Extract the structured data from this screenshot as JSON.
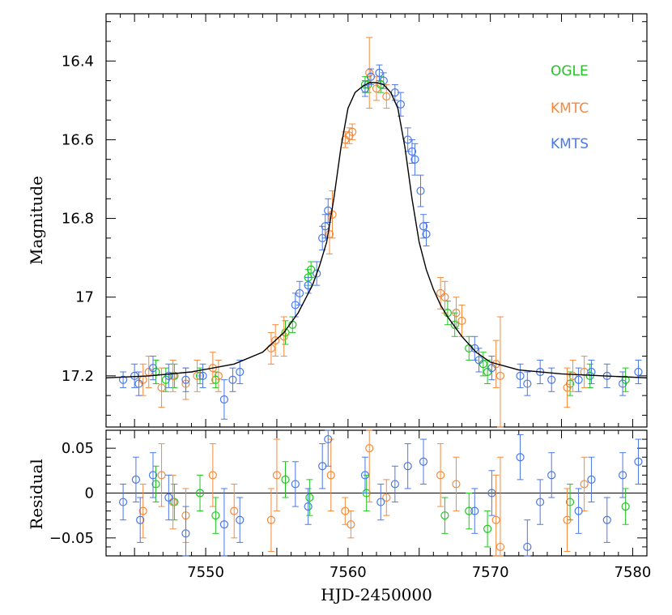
{
  "chart_data": [
    {
      "type": "scatter",
      "panel": "main",
      "xlabel": "",
      "ylabel": "Magnitude",
      "xlim": [
        7543,
        7581
      ],
      "ylim": [
        17.33,
        16.28
      ],
      "y_inverted": true,
      "y_ticks": [
        16.4,
        16.6,
        16.8,
        17,
        17.2
      ],
      "y_tick_labels": [
        "16.4",
        "16.6",
        "16.8",
        "17",
        "17.2"
      ],
      "legend_placement": "top-right",
      "grid": false,
      "model_curve": {
        "name": "",
        "color": "#000000",
        "x": [
          7543,
          7546,
          7549,
          7552,
          7554,
          7555.5,
          7556.5,
          7557.5,
          7558,
          7558.5,
          7559,
          7559.5,
          7560,
          7560.5,
          7561,
          7561.5,
          7562,
          7562.5,
          7563,
          7563.5,
          7564,
          7564.5,
          7565,
          7565.5,
          7566,
          7566.5,
          7567,
          7568,
          7569,
          7570,
          7572,
          7575,
          7578,
          7581
        ],
        "y": [
          17.205,
          17.2,
          17.19,
          17.17,
          17.14,
          17.09,
          17.04,
          16.97,
          16.92,
          16.86,
          16.75,
          16.62,
          16.52,
          16.48,
          16.465,
          16.455,
          16.455,
          16.46,
          16.48,
          16.52,
          16.62,
          16.75,
          16.86,
          16.93,
          16.98,
          17.02,
          17.05,
          17.1,
          17.14,
          17.165,
          17.185,
          17.195,
          17.2,
          17.205
        ]
      },
      "series": [
        {
          "name": "OGLE",
          "color": "#22c422",
          "points": [
            {
              "x": 7546.5,
              "y": 17.19,
              "err": 0.03
            },
            {
              "x": 7547.2,
              "y": 17.21,
              "err": 0.03
            },
            {
              "x": 7547.8,
              "y": 17.2,
              "err": 0.03
            },
            {
              "x": 7549.6,
              "y": 17.2,
              "err": 0.02
            },
            {
              "x": 7550.7,
              "y": 17.21,
              "err": 0.02
            },
            {
              "x": 7555.6,
              "y": 17.09,
              "err": 0.03
            },
            {
              "x": 7556.1,
              "y": 17.07,
              "err": 0.02
            },
            {
              "x": 7557.2,
              "y": 16.95,
              "err": 0.02
            },
            {
              "x": 7557.4,
              "y": 16.93,
              "err": 0.02
            },
            {
              "x": 7561.2,
              "y": 16.46,
              "err": 0.02
            },
            {
              "x": 7561.4,
              "y": 16.46,
              "err": 0.02
            },
            {
              "x": 7562.3,
              "y": 16.46,
              "err": 0.02
            },
            {
              "x": 7567.0,
              "y": 17.04,
              "err": 0.03
            },
            {
              "x": 7567.5,
              "y": 17.07,
              "err": 0.03
            },
            {
              "x": 7568.5,
              "y": 17.13,
              "err": 0.03
            },
            {
              "x": 7569.5,
              "y": 17.17,
              "err": 0.03
            },
            {
              "x": 7569.8,
              "y": 17.19,
              "err": 0.03
            },
            {
              "x": 7575.6,
              "y": 17.22,
              "err": 0.03
            },
            {
              "x": 7577.0,
              "y": 17.2,
              "err": 0.03
            },
            {
              "x": 7579.5,
              "y": 17.21,
              "err": 0.03
            }
          ]
        },
        {
          "name": "KMTC",
          "color": "#f58a3c",
          "points": [
            {
              "x": 7545.6,
              "y": 17.21,
              "err": 0.04
            },
            {
              "x": 7546.0,
              "y": 17.19,
              "err": 0.04
            },
            {
              "x": 7546.9,
              "y": 17.23,
              "err": 0.05
            },
            {
              "x": 7547.7,
              "y": 17.2,
              "err": 0.04
            },
            {
              "x": 7548.6,
              "y": 17.22,
              "err": 0.04
            },
            {
              "x": 7549.4,
              "y": 17.2,
              "err": 0.04
            },
            {
              "x": 7550.5,
              "y": 17.18,
              "err": 0.04
            },
            {
              "x": 7550.9,
              "y": 17.2,
              "err": 0.04
            },
            {
              "x": 7554.6,
              "y": 17.13,
              "err": 0.04
            },
            {
              "x": 7554.9,
              "y": 17.11,
              "err": 0.04
            },
            {
              "x": 7555.5,
              "y": 17.1,
              "err": 0.05
            },
            {
              "x": 7558.7,
              "y": 16.84,
              "err": 0.05
            },
            {
              "x": 7558.9,
              "y": 16.79,
              "err": 0.06
            },
            {
              "x": 7559.8,
              "y": 16.6,
              "err": 0.02
            },
            {
              "x": 7560.1,
              "y": 16.59,
              "err": 0.02
            },
            {
              "x": 7560.3,
              "y": 16.58,
              "err": 0.02
            },
            {
              "x": 7561.5,
              "y": 16.43,
              "err": 0.09
            },
            {
              "x": 7562.0,
              "y": 16.47,
              "err": 0.03
            },
            {
              "x": 7562.7,
              "y": 16.49,
              "err": 0.03
            },
            {
              "x": 7566.5,
              "y": 16.99,
              "err": 0.04
            },
            {
              "x": 7566.8,
              "y": 17.0,
              "err": 0.04
            },
            {
              "x": 7567.6,
              "y": 17.04,
              "err": 0.04
            },
            {
              "x": 7568.0,
              "y": 17.06,
              "err": 0.04
            },
            {
              "x": 7570.4,
              "y": 17.17,
              "err": 0.06
            },
            {
              "x": 7570.7,
              "y": 17.2,
              "err": 0.15
            },
            {
              "x": 7575.4,
              "y": 17.23,
              "err": 0.05
            },
            {
              "x": 7575.8,
              "y": 17.2,
              "err": 0.04
            },
            {
              "x": 7576.6,
              "y": 17.19,
              "err": 0.04
            }
          ]
        },
        {
          "name": "KMTS",
          "color": "#4b78e8",
          "points": [
            {
              "x": 7544.2,
              "y": 17.21,
              "err": 0.02
            },
            {
              "x": 7545.0,
              "y": 17.2,
              "err": 0.03
            },
            {
              "x": 7545.3,
              "y": 17.22,
              "err": 0.03
            },
            {
              "x": 7546.3,
              "y": 17.18,
              "err": 0.03
            },
            {
              "x": 7547.4,
              "y": 17.2,
              "err": 0.03
            },
            {
              "x": 7548.6,
              "y": 17.21,
              "err": 0.03
            },
            {
              "x": 7549.8,
              "y": 17.2,
              "err": 0.03
            },
            {
              "x": 7551.3,
              "y": 17.26,
              "err": 0.05
            },
            {
              "x": 7551.9,
              "y": 17.21,
              "err": 0.03
            },
            {
              "x": 7552.4,
              "y": 17.19,
              "err": 0.03
            },
            {
              "x": 7556.3,
              "y": 17.02,
              "err": 0.03
            },
            {
              "x": 7556.6,
              "y": 16.99,
              "err": 0.03
            },
            {
              "x": 7557.2,
              "y": 16.97,
              "err": 0.02
            },
            {
              "x": 7557.8,
              "y": 16.94,
              "err": 0.03
            },
            {
              "x": 7558.2,
              "y": 16.85,
              "err": 0.03
            },
            {
              "x": 7558.4,
              "y": 16.82,
              "err": 0.03
            },
            {
              "x": 7558.6,
              "y": 16.78,
              "err": 0.03
            },
            {
              "x": 7561.2,
              "y": 16.47,
              "err": 0.02
            },
            {
              "x": 7561.6,
              "y": 16.44,
              "err": 0.02
            },
            {
              "x": 7562.2,
              "y": 16.43,
              "err": 0.02
            },
            {
              "x": 7562.5,
              "y": 16.45,
              "err": 0.02
            },
            {
              "x": 7563.3,
              "y": 16.48,
              "err": 0.02
            },
            {
              "x": 7563.7,
              "y": 16.51,
              "err": 0.03
            },
            {
              "x": 7564.2,
              "y": 16.6,
              "err": 0.03
            },
            {
              "x": 7564.5,
              "y": 16.63,
              "err": 0.03
            },
            {
              "x": 7564.7,
              "y": 16.65,
              "err": 0.04
            },
            {
              "x": 7565.1,
              "y": 16.73,
              "err": 0.04
            },
            {
              "x": 7565.3,
              "y": 16.82,
              "err": 0.03
            },
            {
              "x": 7565.5,
              "y": 16.84,
              "err": 0.03
            },
            {
              "x": 7568.9,
              "y": 17.13,
              "err": 0.03
            },
            {
              "x": 7569.2,
              "y": 17.16,
              "err": 0.03
            },
            {
              "x": 7570.1,
              "y": 17.18,
              "err": 0.03
            },
            {
              "x": 7572.1,
              "y": 17.2,
              "err": 0.03
            },
            {
              "x": 7572.6,
              "y": 17.22,
              "err": 0.03
            },
            {
              "x": 7573.5,
              "y": 17.19,
              "err": 0.03
            },
            {
              "x": 7574.3,
              "y": 17.21,
              "err": 0.03
            },
            {
              "x": 7576.2,
              "y": 17.21,
              "err": 0.03
            },
            {
              "x": 7577.1,
              "y": 17.19,
              "err": 0.03
            },
            {
              "x": 7578.2,
              "y": 17.2,
              "err": 0.03
            },
            {
              "x": 7579.3,
              "y": 17.22,
              "err": 0.03
            },
            {
              "x": 7580.4,
              "y": 17.19,
              "err": 0.03
            }
          ]
        }
      ]
    },
    {
      "type": "scatter",
      "panel": "residual",
      "xlabel": "HJD-2450000",
      "ylabel": "Residual",
      "xlim": [
        7543,
        7581
      ],
      "ylim": [
        -0.07,
        0.07
      ],
      "x_ticks": [
        7550,
        7560,
        7570,
        7580
      ],
      "x_tick_labels": [
        "7550",
        "7560",
        "7570",
        "7580"
      ],
      "y_ticks": [
        0.05,
        0,
        -0.05
      ],
      "y_tick_labels": [
        "0.05",
        "0",
        "−0.05"
      ],
      "zero_line": true,
      "series": [
        {
          "name": "OGLE",
          "color": "#22c422",
          "points": [
            {
              "x": 7546.5,
              "y": 0.01,
              "err": 0.02
            },
            {
              "x": 7547.8,
              "y": -0.01,
              "err": 0.02
            },
            {
              "x": 7549.6,
              "y": 0.0,
              "err": 0.02
            },
            {
              "x": 7550.7,
              "y": -0.025,
              "err": 0.02
            },
            {
              "x": 7555.6,
              "y": 0.015,
              "err": 0.02
            },
            {
              "x": 7557.3,
              "y": -0.005,
              "err": 0.02
            },
            {
              "x": 7561.3,
              "y": 0.0,
              "err": 0.02
            },
            {
              "x": 7566.8,
              "y": -0.025,
              "err": 0.02
            },
            {
              "x": 7568.5,
              "y": -0.02,
              "err": 0.02
            },
            {
              "x": 7569.8,
              "y": -0.04,
              "err": 0.02
            },
            {
              "x": 7575.6,
              "y": -0.01,
              "err": 0.02
            },
            {
              "x": 7579.5,
              "y": -0.015,
              "err": 0.02
            }
          ]
        },
        {
          "name": "KMTC",
          "color": "#f58a3c",
          "points": [
            {
              "x": 7545.6,
              "y": -0.02,
              "err": 0.03
            },
            {
              "x": 7546.9,
              "y": 0.02,
              "err": 0.035
            },
            {
              "x": 7547.7,
              "y": -0.01,
              "err": 0.03
            },
            {
              "x": 7548.6,
              "y": -0.025,
              "err": 0.03
            },
            {
              "x": 7550.5,
              "y": 0.02,
              "err": 0.035
            },
            {
              "x": 7552.0,
              "y": -0.02,
              "err": 0.03
            },
            {
              "x": 7554.6,
              "y": -0.03,
              "err": 0.035
            },
            {
              "x": 7555.0,
              "y": 0.02,
              "err": 0.04
            },
            {
              "x": 7558.8,
              "y": 0.02,
              "err": 0.04
            },
            {
              "x": 7559.8,
              "y": -0.02,
              "err": 0.015
            },
            {
              "x": 7560.2,
              "y": -0.035,
              "err": 0.015
            },
            {
              "x": 7561.5,
              "y": 0.05,
              "err": 0.06
            },
            {
              "x": 7562.7,
              "y": -0.005,
              "err": 0.02
            },
            {
              "x": 7566.5,
              "y": 0.02,
              "err": 0.035
            },
            {
              "x": 7567.6,
              "y": 0.01,
              "err": 0.03
            },
            {
              "x": 7570.4,
              "y": -0.03,
              "err": 0.05
            },
            {
              "x": 7570.7,
              "y": -0.06,
              "err": 0.1
            },
            {
              "x": 7575.4,
              "y": -0.03,
              "err": 0.035
            },
            {
              "x": 7576.6,
              "y": 0.01,
              "err": 0.03
            }
          ]
        },
        {
          "name": "KMTS",
          "color": "#4b78e8",
          "points": [
            {
              "x": 7544.2,
              "y": -0.01,
              "err": 0.02
            },
            {
              "x": 7545.1,
              "y": 0.015,
              "err": 0.025
            },
            {
              "x": 7545.4,
              "y": -0.03,
              "err": 0.025
            },
            {
              "x": 7546.3,
              "y": 0.02,
              "err": 0.025
            },
            {
              "x": 7547.4,
              "y": -0.005,
              "err": 0.025
            },
            {
              "x": 7548.6,
              "y": -0.045,
              "err": 0.03
            },
            {
              "x": 7551.3,
              "y": -0.035,
              "err": 0.04
            },
            {
              "x": 7552.4,
              "y": -0.03,
              "err": 0.025
            },
            {
              "x": 7556.3,
              "y": 0.01,
              "err": 0.025
            },
            {
              "x": 7557.2,
              "y": -0.015,
              "err": 0.02
            },
            {
              "x": 7558.2,
              "y": 0.03,
              "err": 0.025
            },
            {
              "x": 7558.6,
              "y": 0.06,
              "err": 0.03
            },
            {
              "x": 7561.2,
              "y": 0.02,
              "err": 0.02
            },
            {
              "x": 7562.3,
              "y": -0.01,
              "err": 0.02
            },
            {
              "x": 7563.3,
              "y": 0.01,
              "err": 0.02
            },
            {
              "x": 7564.2,
              "y": 0.03,
              "err": 0.025
            },
            {
              "x": 7565.3,
              "y": 0.035,
              "err": 0.025
            },
            {
              "x": 7568.9,
              "y": -0.02,
              "err": 0.025
            },
            {
              "x": 7570.1,
              "y": 0.0,
              "err": 0.025
            },
            {
              "x": 7572.1,
              "y": 0.04,
              "err": 0.025
            },
            {
              "x": 7572.6,
              "y": -0.06,
              "err": 0.03
            },
            {
              "x": 7573.5,
              "y": -0.01,
              "err": 0.025
            },
            {
              "x": 7574.3,
              "y": 0.02,
              "err": 0.025
            },
            {
              "x": 7576.2,
              "y": -0.02,
              "err": 0.025
            },
            {
              "x": 7577.1,
              "y": 0.015,
              "err": 0.025
            },
            {
              "x": 7578.2,
              "y": -0.03,
              "err": 0.025
            },
            {
              "x": 7579.3,
              "y": 0.02,
              "err": 0.025
            },
            {
              "x": 7580.4,
              "y": 0.035,
              "err": 0.025
            }
          ]
        }
      ]
    }
  ]
}
